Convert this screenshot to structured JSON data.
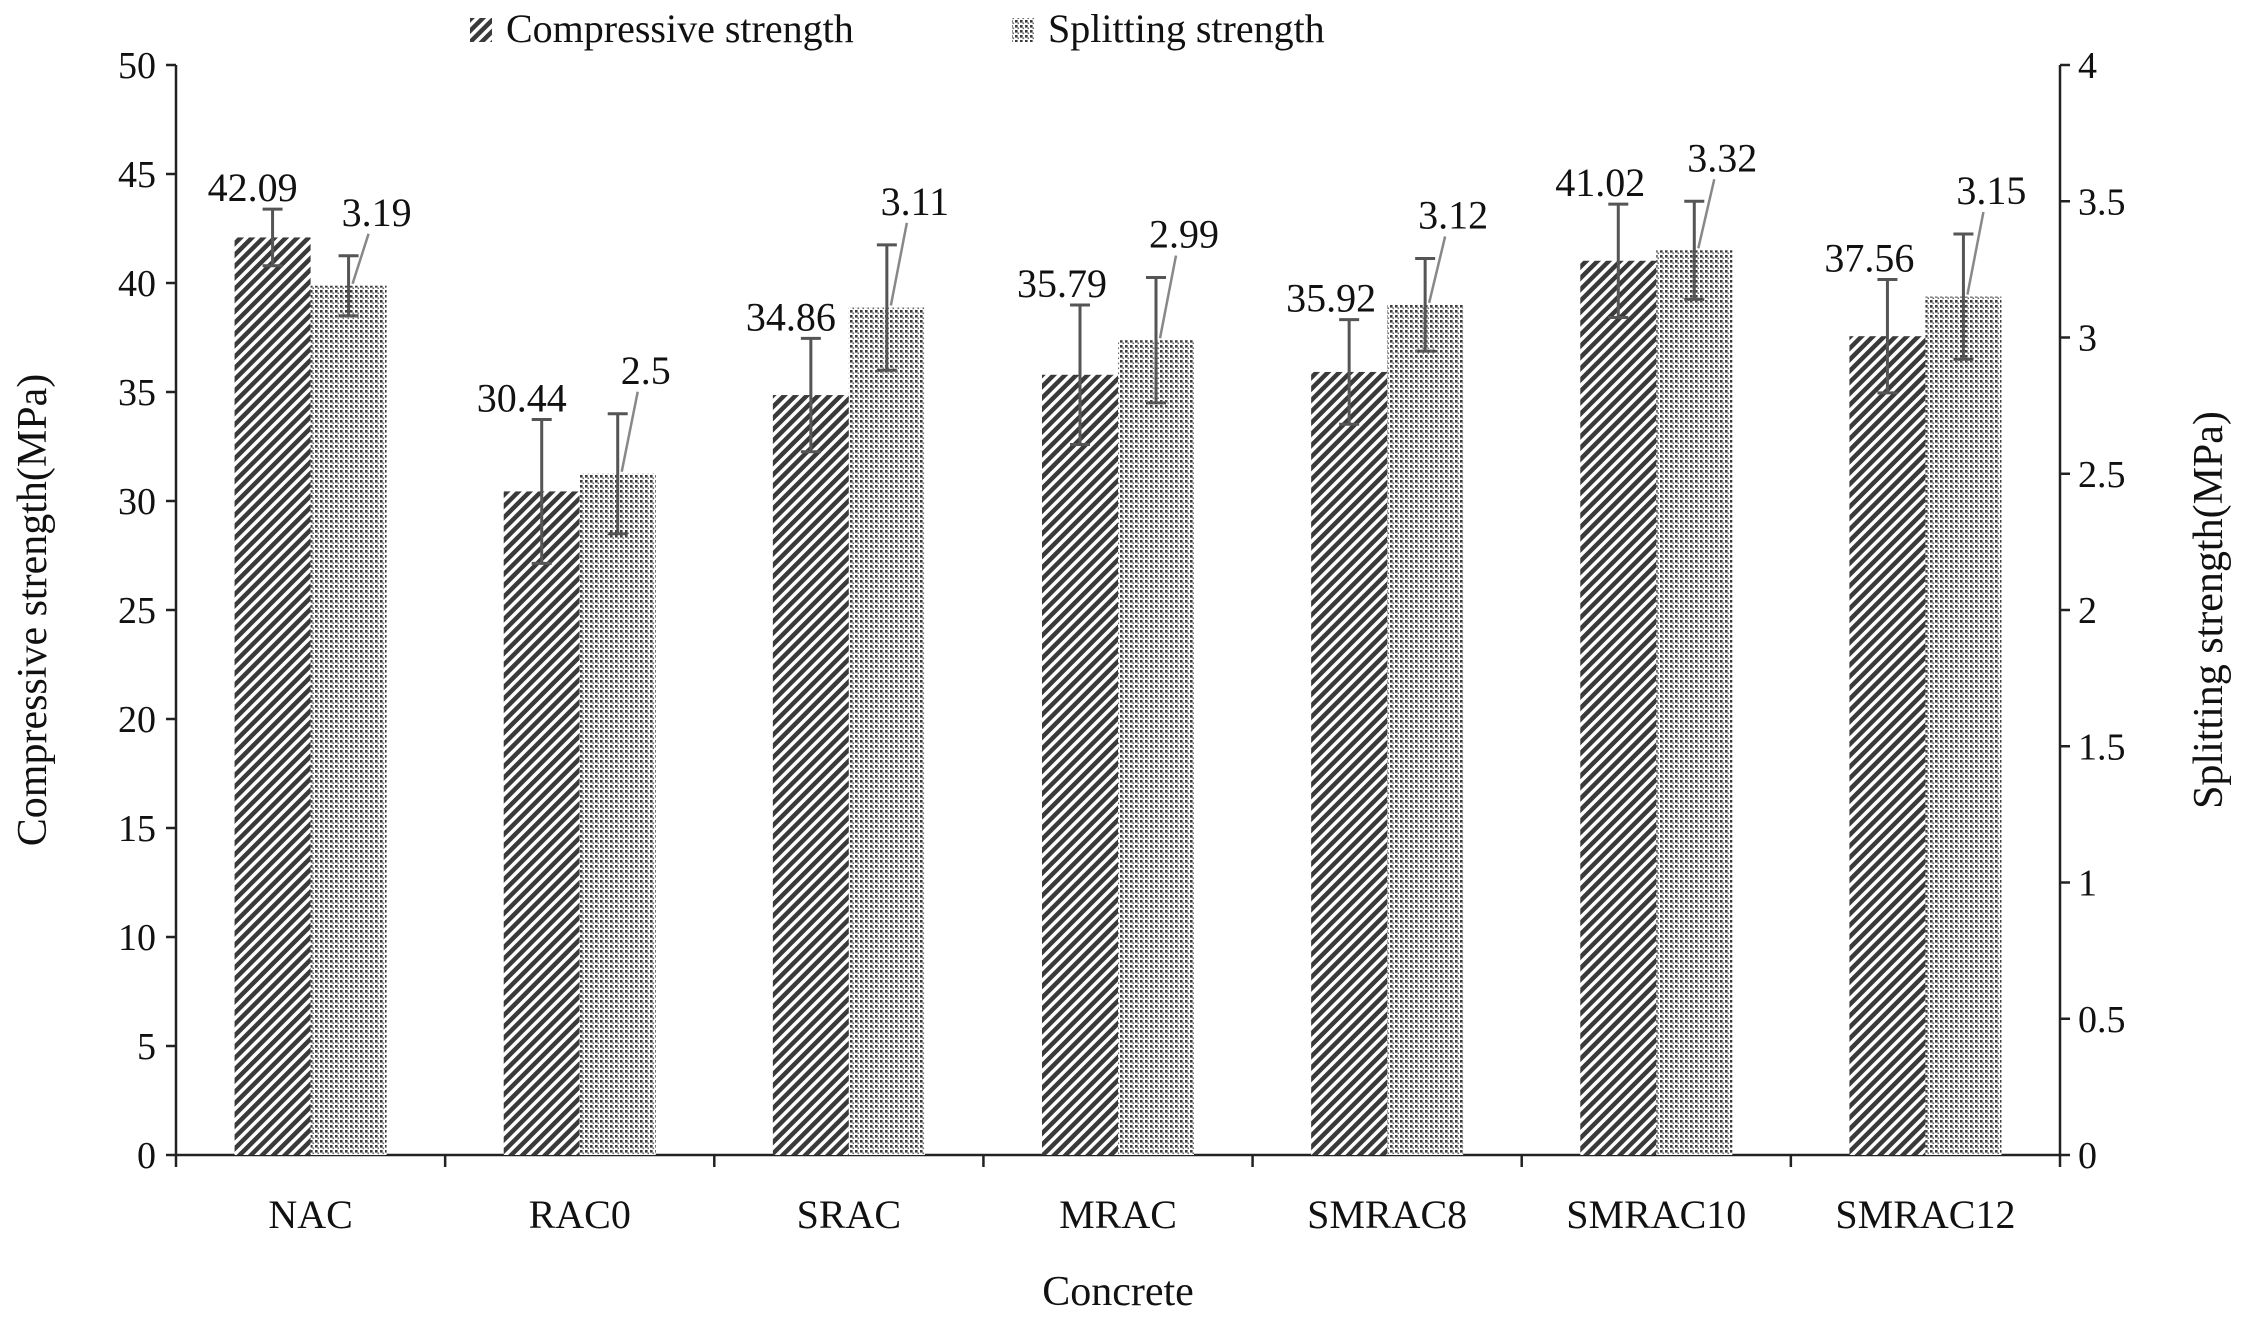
{
  "chart_data": {
    "type": "bar",
    "categories": [
      "NAC",
      "RAC0",
      "SRAC",
      "MRAC",
      "SMRAC8",
      "SMRAC10",
      "SMRAC12"
    ],
    "xlabel": "Concrete",
    "ylabel": "Compressive strength(MPa)",
    "y2label": "Splitting strength(MPa)",
    "ylim": [
      0,
      50
    ],
    "y2lim": [
      0,
      4
    ],
    "yticks": [
      "0",
      "5",
      "10",
      "15",
      "20",
      "25",
      "30",
      "35",
      "40",
      "45",
      "50"
    ],
    "y2ticks": [
      "0",
      "0.5",
      "1",
      "1.5",
      "2",
      "2.5",
      "3",
      "3.5",
      "4"
    ],
    "legend_position": "top-center",
    "grid": false,
    "series": [
      {
        "name": "Compressive strength",
        "axis": "left",
        "pattern": "diagonal-hatch",
        "values": [
          42.09,
          30.44,
          34.86,
          35.79,
          35.92,
          41.02,
          37.56
        ],
        "labels": [
          "42.09",
          "30.44",
          "34.86",
          "35.79",
          "35.92",
          "41.02",
          "37.56"
        ],
        "errors": [
          1.3,
          3.3,
          2.6,
          3.2,
          2.4,
          2.6,
          2.6
        ]
      },
      {
        "name": "Splitting strength",
        "axis": "right",
        "pattern": "dotted",
        "values": [
          3.19,
          2.5,
          3.11,
          2.99,
          3.12,
          3.32,
          3.15
        ],
        "labels": [
          "3.19",
          "2.5",
          "3.11",
          "2.99",
          "3.12",
          "3.32",
          "3.15"
        ],
        "errors": [
          0.11,
          0.22,
          0.23,
          0.23,
          0.17,
          0.18,
          0.23
        ]
      }
    ]
  }
}
